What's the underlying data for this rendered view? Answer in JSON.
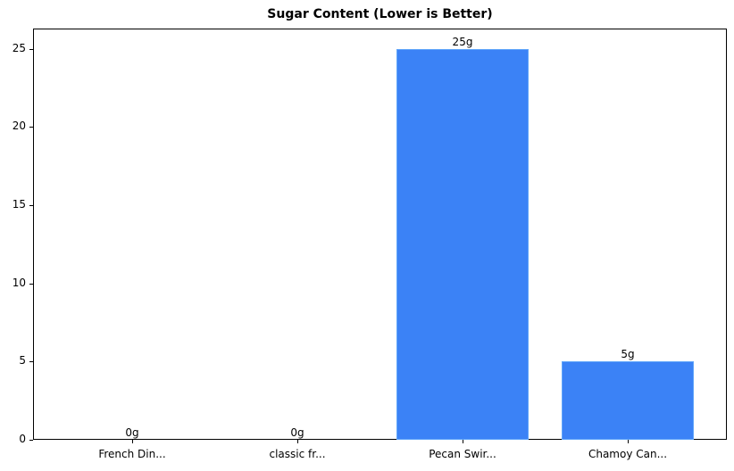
{
  "chart_data": {
    "type": "bar",
    "title": "Sugar Content (Lower is Better)",
    "xlabel": "",
    "ylabel": "",
    "categories": [
      "French Din...",
      "classic fr...",
      "Pecan Swir...",
      "Chamoy Can..."
    ],
    "values": [
      0,
      0,
      25,
      5
    ],
    "data_labels": [
      "0g",
      "0g",
      "25g",
      "5g"
    ],
    "overlapping_labels_note": "French Din... shows overlapping duplicate '0g' label",
    "ylim": [
      0,
      26.3
    ],
    "yticks": [
      0,
      5,
      10,
      15,
      20,
      25
    ],
    "grid": false,
    "legend": null,
    "bar_color": "#3b82f6",
    "bar_edge_color": "#60a5fa"
  },
  "ytick_labels": [
    "0",
    "5",
    "10",
    "15",
    "20",
    "25"
  ]
}
